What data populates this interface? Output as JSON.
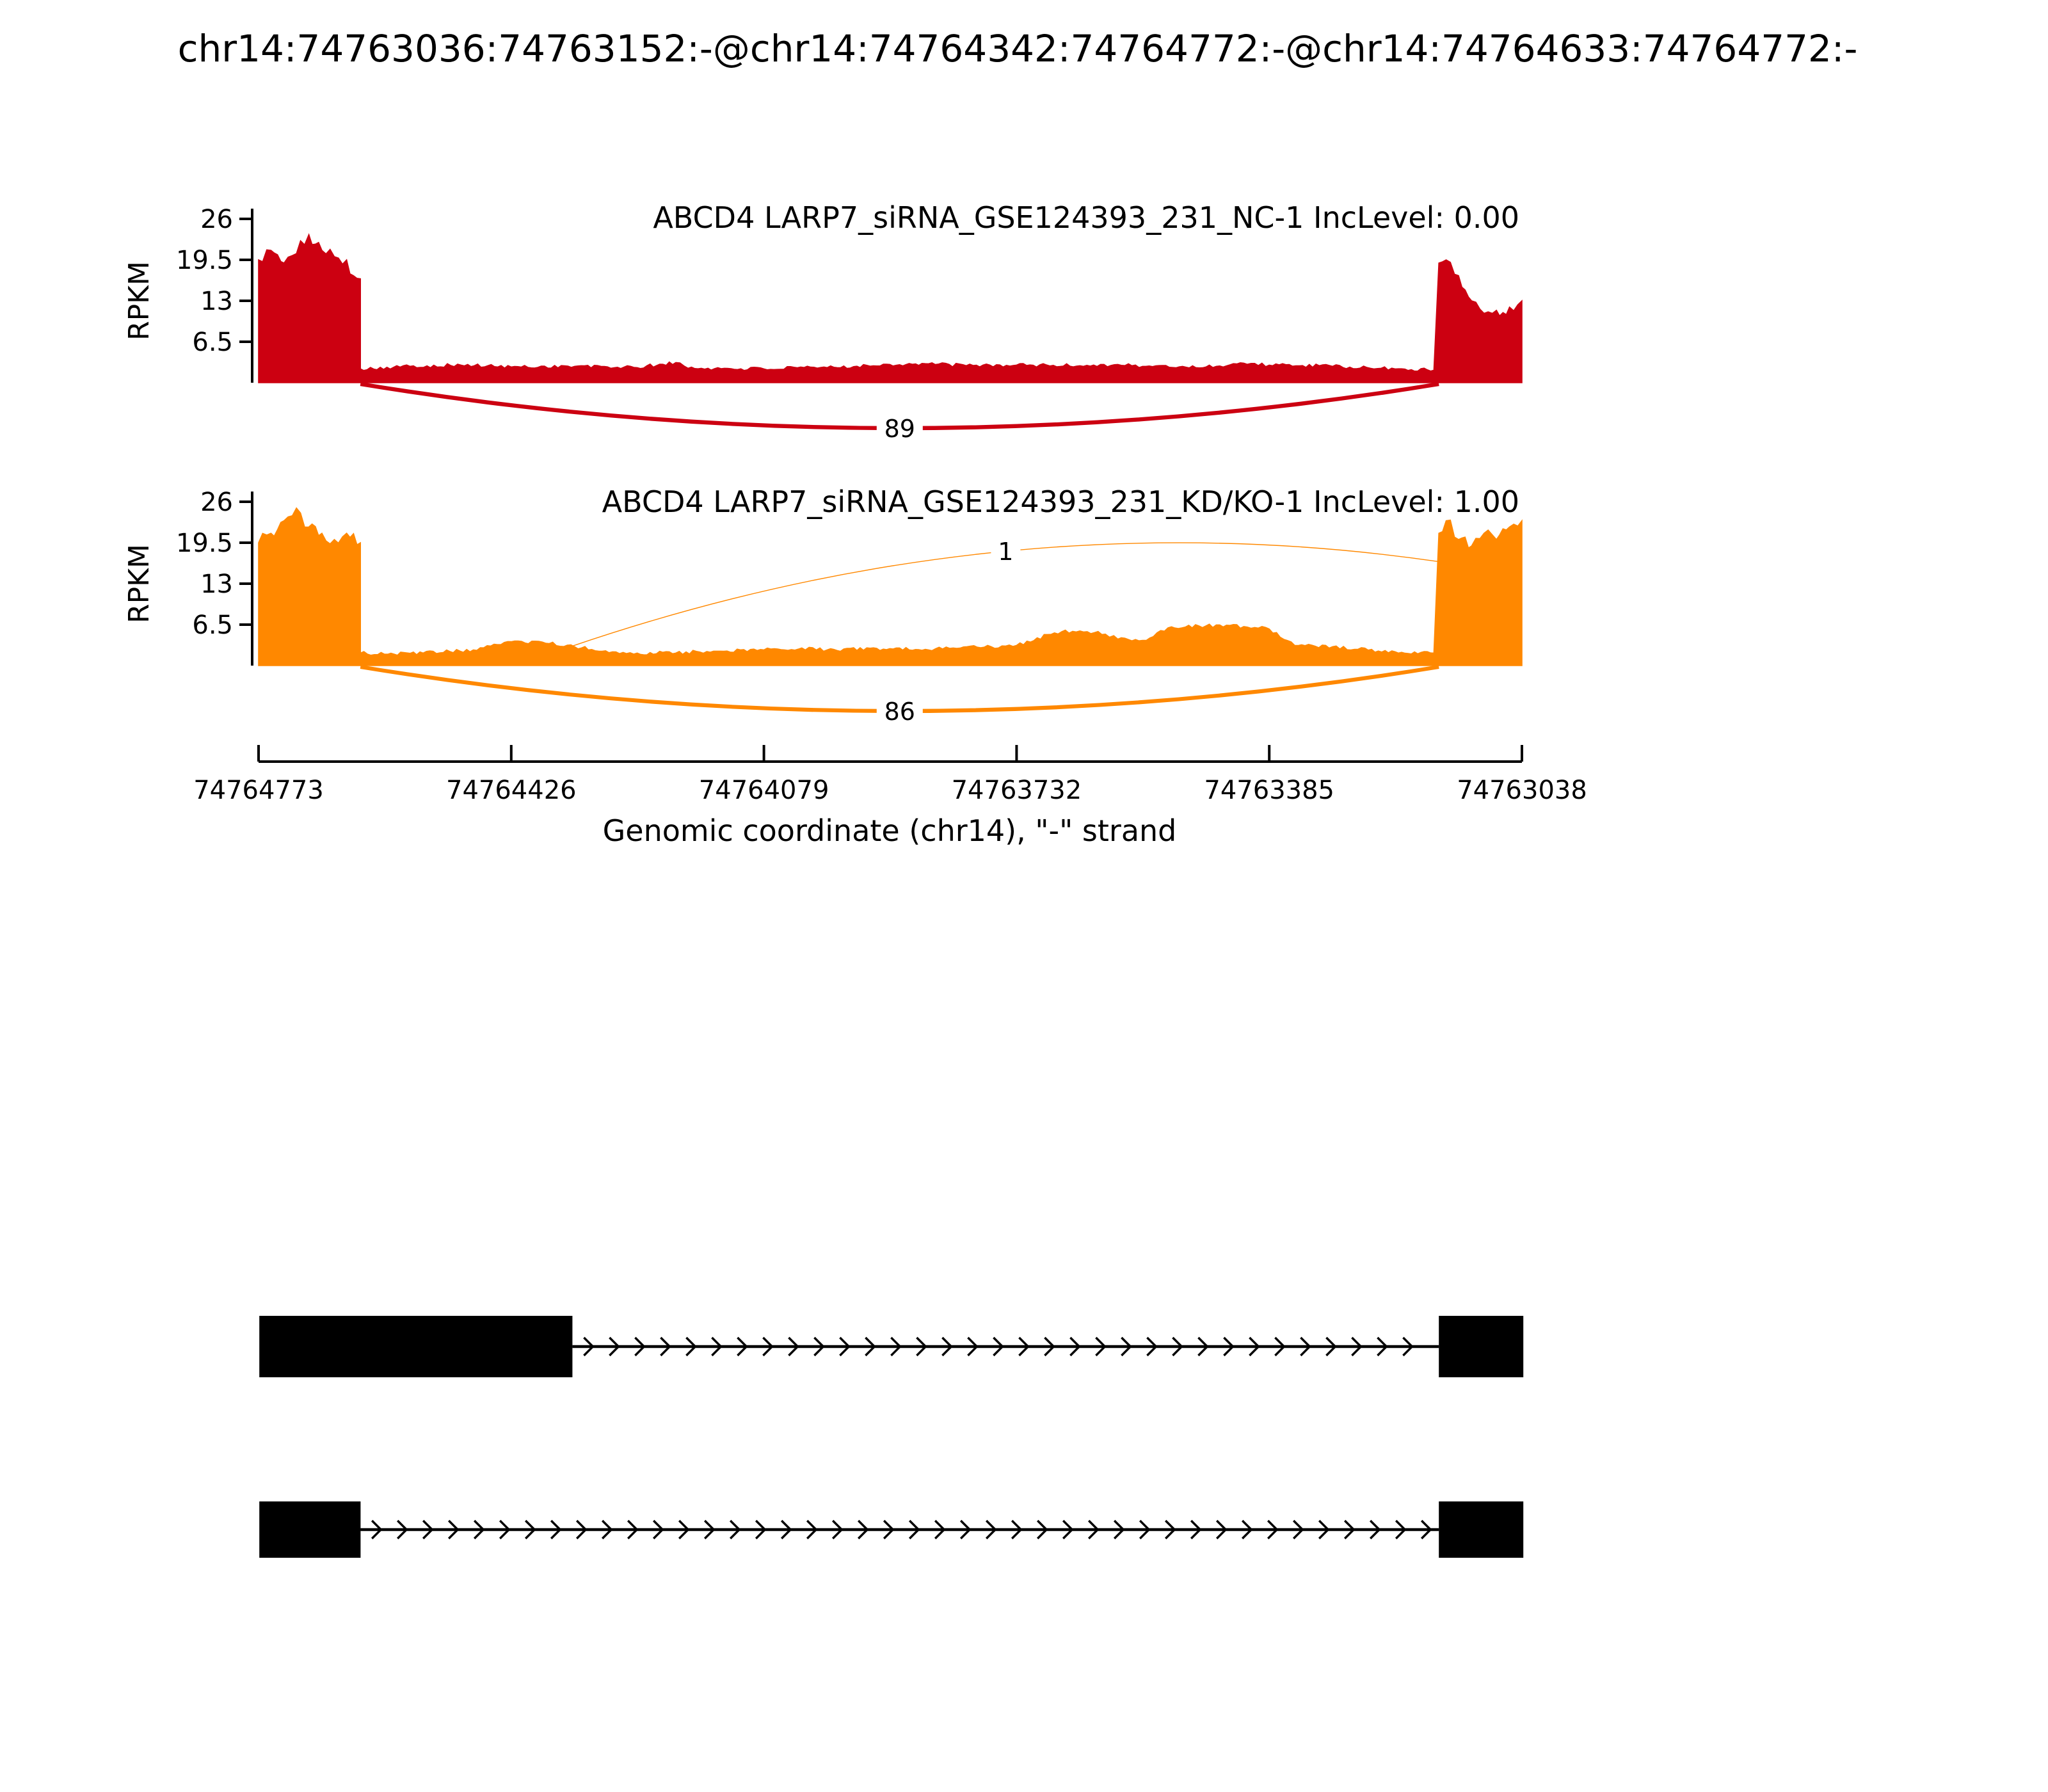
{
  "title": "chr14:74763036:74763152:-@chr14:74764342:74764772:-@chr14:74764633:74764772:-",
  "chart_data": {
    "type": "sashimi",
    "region": {
      "chrom": "chr14",
      "strand": "-",
      "view_start": 74764773,
      "view_end": 74763038
    },
    "xlabel": "Genomic coordinate (chr14), \"-\" strand",
    "ylabel": "RPKM",
    "x_ticks": [
      74764773,
      74764426,
      74764079,
      74763732,
      74763385,
      74763038
    ],
    "y_ticks": [
      26,
      19.5,
      13,
      6.5
    ],
    "ylim": [
      0,
      26
    ],
    "tracks": [
      {
        "label": "ABCD4 LARP7_siRNA_GSE124393_231_NC-1 IncLevel: 0.00",
        "sample": "ABCD4 LARP7_siRNA_GSE124393_231_NC-1",
        "inc_level": "0.00",
        "color": "#CC0011",
        "junctions": [
          {
            "start": 74764633,
            "end": 74763152,
            "count": 89,
            "side": "below"
          }
        ],
        "coverage": [
          [
            74764773,
            19.5
          ],
          [
            74764756,
            21.0
          ],
          [
            74764738,
            19.0
          ],
          [
            74764721,
            20.5
          ],
          [
            74764704,
            23.5
          ],
          [
            74764686,
            21.0
          ],
          [
            74764669,
            20.0
          ],
          [
            74764652,
            19.5
          ],
          [
            74764643,
            17.0
          ],
          [
            74764633,
            16.5
          ],
          [
            74764633,
            2.2
          ],
          [
            74764565,
            2.6
          ],
          [
            74764495,
            2.8
          ],
          [
            74764426,
            2.5
          ],
          [
            74764339,
            2.6
          ],
          [
            74764253,
            2.4
          ],
          [
            74764200,
            3.2
          ],
          [
            74764183,
            2.3
          ],
          [
            74764079,
            2.2
          ],
          [
            74763992,
            2.4
          ],
          [
            74763906,
            2.9
          ],
          [
            74763853,
            3.0
          ],
          [
            74763801,
            2.7
          ],
          [
            74763732,
            2.8
          ],
          [
            74763645,
            2.7
          ],
          [
            74763593,
            2.9
          ],
          [
            74763559,
            2.6
          ],
          [
            74763472,
            2.5
          ],
          [
            74763420,
            3.1
          ],
          [
            74763385,
            2.8
          ],
          [
            74763298,
            2.6
          ],
          [
            74763246,
            2.3
          ],
          [
            74763212,
            2.2
          ],
          [
            74763159,
            2.0
          ],
          [
            74763152,
            19.0
          ],
          [
            74763142,
            19.5
          ],
          [
            74763125,
            17.0
          ],
          [
            74763107,
            13.0
          ],
          [
            74763090,
            11.0
          ],
          [
            74763073,
            11.5
          ],
          [
            74763055,
            12.0
          ],
          [
            74763038,
            13.0
          ]
        ]
      },
      {
        "label": "ABCD4 LARP7_siRNA_GSE124393_231_KD/KO-1 IncLevel: 1.00",
        "sample": "ABCD4 LARP7_siRNA_GSE124393_231_KD/KO-1",
        "inc_level": "1.00",
        "color": "#FF8800",
        "junctions": [
          {
            "start": 74764342,
            "end": 74763152,
            "count": 1,
            "side": "above"
          },
          {
            "start": 74764633,
            "end": 74763152,
            "count": 86,
            "side": "below"
          }
        ],
        "coverage": [
          [
            74764773,
            19.5
          ],
          [
            74764756,
            21.0
          ],
          [
            74764738,
            23.0
          ],
          [
            74764721,
            25.0
          ],
          [
            74764704,
            22.0
          ],
          [
            74764686,
            21.0
          ],
          [
            74764669,
            20.0
          ],
          [
            74764652,
            21.0
          ],
          [
            74764633,
            19.5
          ],
          [
            74764633,
            2.0
          ],
          [
            74764600,
            1.8
          ],
          [
            74764547,
            2.0
          ],
          [
            74764478,
            2.5
          ],
          [
            74764426,
            3.8
          ],
          [
            74764374,
            3.5
          ],
          [
            74764339,
            3.0
          ],
          [
            74764287,
            2.2
          ],
          [
            74764253,
            2.0
          ],
          [
            74764200,
            2.0
          ],
          [
            74764148,
            2.3
          ],
          [
            74764079,
            2.5
          ],
          [
            74764027,
            2.8
          ],
          [
            74763992,
            2.5
          ],
          [
            74763906,
            2.7
          ],
          [
            74763853,
            2.5
          ],
          [
            74763819,
            2.8
          ],
          [
            74763767,
            3.0
          ],
          [
            74763732,
            3.2
          ],
          [
            74763680,
            5.2
          ],
          [
            74763645,
            5.5
          ],
          [
            74763610,
            5.0
          ],
          [
            74763593,
            4.2
          ],
          [
            74763559,
            4.0
          ],
          [
            74763524,
            6.0
          ],
          [
            74763472,
            6.3
          ],
          [
            74763420,
            6.2
          ],
          [
            74763385,
            5.8
          ],
          [
            74763350,
            3.2
          ],
          [
            74763298,
            3.0
          ],
          [
            74763263,
            2.6
          ],
          [
            74763212,
            2.2
          ],
          [
            74763159,
            2.0
          ],
          [
            74763152,
            21.0
          ],
          [
            74763142,
            23.0
          ],
          [
            74763125,
            20.0
          ],
          [
            74763107,
            19.0
          ],
          [
            74763090,
            21.0
          ],
          [
            74763073,
            20.0
          ],
          [
            74763055,
            22.0
          ],
          [
            74763038,
            23.0
          ]
        ]
      }
    ],
    "transcripts": [
      {
        "exons": [
          [
            74764342,
            74764772
          ],
          [
            74763036,
            74763152
          ]
        ],
        "strand": "-"
      },
      {
        "exons": [
          [
            74764633,
            74764772
          ],
          [
            74763036,
            74763152
          ]
        ],
        "strand": "-"
      }
    ]
  }
}
